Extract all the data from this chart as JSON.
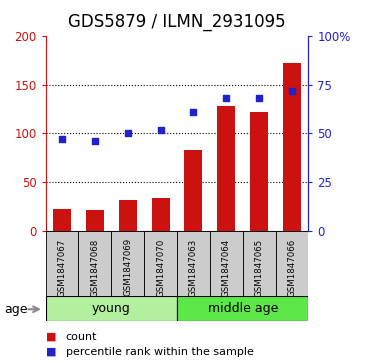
{
  "title": "GDS5879 / ILMN_2931095",
  "samples": [
    "GSM1847067",
    "GSM1847068",
    "GSM1847069",
    "GSM1847070",
    "GSM1847063",
    "GSM1847064",
    "GSM1847065",
    "GSM1847066"
  ],
  "counts": [
    22,
    21,
    31,
    33,
    83,
    128,
    122,
    172
  ],
  "percentiles": [
    47,
    46,
    50,
    52,
    61,
    68,
    68,
    72
  ],
  "groups": [
    {
      "label": "young",
      "start": 0,
      "end": 4
    },
    {
      "label": "middle age",
      "start": 4,
      "end": 8
    }
  ],
  "young_color": "#b2f0a0",
  "middle_color": "#5de84a",
  "bar_color": "#cc1111",
  "dot_color": "#2222cc",
  "ylim_left": [
    0,
    200
  ],
  "ylim_right": [
    0,
    100
  ],
  "yticks_left": [
    0,
    50,
    100,
    150,
    200
  ],
  "yticks_right": [
    0,
    25,
    50,
    75,
    100
  ],
  "ytick_labels_right": [
    "0",
    "25",
    "50",
    "75",
    "100%"
  ],
  "grid_values": [
    50,
    100,
    150
  ],
  "age_label": "age",
  "legend_count_label": "count",
  "legend_pct_label": "percentile rank within the sample",
  "bar_width": 0.55,
  "label_area_color": "#cccccc",
  "title_fontsize": 12,
  "tick_fontsize": 8.5,
  "sample_fontsize": 6.2,
  "group_fontsize": 9,
  "legend_fontsize": 8
}
